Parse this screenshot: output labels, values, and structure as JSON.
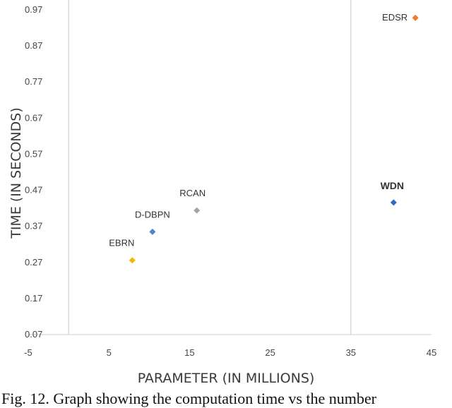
{
  "chart_data": {
    "type": "scatter",
    "title": "",
    "xlabel": "PARAMETER (IN MILLIONS)",
    "ylabel": "TIME (IN SECONDS)",
    "xlim": [
      -5,
      45
    ],
    "ylim": [
      0.07,
      0.97
    ],
    "xticks": [
      -5,
      5,
      15,
      25,
      35,
      45
    ],
    "yticks": [
      0.07,
      0.17,
      0.27,
      0.37,
      0.47,
      0.57,
      0.67,
      0.77,
      0.87,
      0.97
    ],
    "grid": "vertical",
    "points": [
      {
        "label": "EBRN",
        "x": 7.9,
        "y": 0.276,
        "color": "#f5b700"
      },
      {
        "label": "D-DBPN",
        "x": 10.4,
        "y": 0.355,
        "color": "#4a86c8"
      },
      {
        "label": "RCAN",
        "x": 15.9,
        "y": 0.414,
        "color": "#a5a5a5"
      },
      {
        "label": "WDN",
        "x": 40.3,
        "y": 0.436,
        "color": "#2e6cc2",
        "bold": true
      },
      {
        "label": "EDSR",
        "x": 43.0,
        "y": 0.948,
        "color": "#ed7d31"
      }
    ]
  },
  "caption": "Fig. 12. Graph showing the computation time vs the number"
}
